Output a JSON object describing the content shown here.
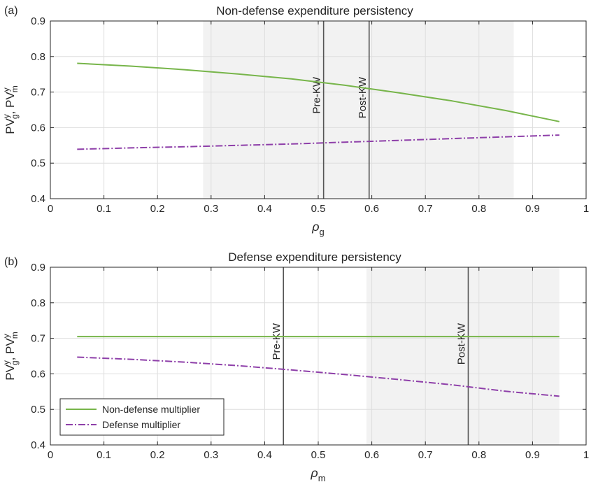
{
  "figure_labels": {
    "a": "(a)",
    "b": "(b)"
  },
  "chart_data": [
    {
      "type": "line",
      "panel": "(a)",
      "title": "Non-defense expenditure persistency",
      "xlabel": "ρ",
      "xlabel_sub": "g",
      "ylabel": "PV^y_g, PV^y_m",
      "ylabel_parts": {
        "base1": "PV",
        "sup1": "y",
        "sub1": "g",
        "sep": ", ",
        "base2": "PV",
        "sup2": "y",
        "sub2": "m"
      },
      "xlim": [
        0,
        1
      ],
      "ylim": [
        0.4,
        0.9
      ],
      "xticks": [
        0,
        0.1,
        0.2,
        0.3,
        0.4,
        0.5,
        0.6,
        0.7,
        0.8,
        0.9,
        1
      ],
      "xtick_labels": [
        "0",
        "0.1",
        "0.2",
        "0.3",
        "0.4",
        "0.5",
        "0.6",
        "0.7",
        "0.8",
        "0.9",
        "1"
      ],
      "yticks": [
        0.4,
        0.5,
        0.6,
        0.7,
        0.8,
        0.9
      ],
      "ytick_labels": [
        "0.4",
        "0.5",
        "0.6",
        "0.7",
        "0.8",
        "0.9"
      ],
      "grid": true,
      "shaded_region": [
        0.285,
        0.865
      ],
      "vlines": [
        {
          "x": 0.51,
          "label": "Pre-KW"
        },
        {
          "x": 0.595,
          "label": "Post-KW"
        }
      ],
      "series": [
        {
          "style": "solid",
          "color": "#77b54a",
          "x": [
            0.05,
            0.15,
            0.25,
            0.35,
            0.45,
            0.55,
            0.65,
            0.75,
            0.85,
            0.95
          ],
          "y": [
            0.781,
            0.773,
            0.763,
            0.751,
            0.737,
            0.719,
            0.698,
            0.675,
            0.648,
            0.617
          ]
        },
        {
          "style": "dashdot",
          "color": "#8e3fa9",
          "x": [
            0.05,
            0.15,
            0.25,
            0.35,
            0.45,
            0.55,
            0.65,
            0.75,
            0.85,
            0.95
          ],
          "y": [
            0.539,
            0.543,
            0.546,
            0.55,
            0.554,
            0.559,
            0.564,
            0.569,
            0.574,
            0.579
          ]
        }
      ]
    },
    {
      "type": "line",
      "panel": "(b)",
      "title": "Defense expenditure persistency",
      "xlabel": "ρ",
      "xlabel_sub": "m",
      "ylabel": "PV^y_g, PV^y_m",
      "ylabel_parts": {
        "base1": "PV",
        "sup1": "y",
        "sub1": "g",
        "sep": ", ",
        "base2": "PV",
        "sup2": "y",
        "sub2": "m"
      },
      "xlim": [
        0,
        1
      ],
      "ylim": [
        0.4,
        0.9
      ],
      "xticks": [
        0,
        0.1,
        0.2,
        0.3,
        0.4,
        0.5,
        0.6,
        0.7,
        0.8,
        0.9,
        1
      ],
      "xtick_labels": [
        "0",
        "0.1",
        "0.2",
        "0.3",
        "0.4",
        "0.5",
        "0.6",
        "0.7",
        "0.8",
        "0.9",
        "1"
      ],
      "yticks": [
        0.4,
        0.5,
        0.6,
        0.7,
        0.8,
        0.9
      ],
      "ytick_labels": [
        "0.4",
        "0.5",
        "0.6",
        "0.7",
        "0.8",
        "0.9"
      ],
      "grid": true,
      "shaded_region": [
        0.59,
        0.95
      ],
      "vlines": [
        {
          "x": 0.435,
          "label": "Pre-KW"
        },
        {
          "x": 0.78,
          "label": "Post-KW"
        }
      ],
      "legend": {
        "placement": "bottom-left",
        "entries": [
          "Non-defense multiplier",
          "Defense multiplier"
        ]
      },
      "series": [
        {
          "name": "Non-defense multiplier",
          "style": "solid",
          "color": "#77b54a",
          "x": [
            0.05,
            0.95
          ],
          "y": [
            0.705,
            0.705
          ]
        },
        {
          "name": "Defense multiplier",
          "style": "dashdot",
          "color": "#8e3fa9",
          "x": [
            0.05,
            0.15,
            0.25,
            0.35,
            0.45,
            0.55,
            0.65,
            0.75,
            0.85,
            0.95
          ],
          "y": [
            0.647,
            0.641,
            0.633,
            0.623,
            0.611,
            0.598,
            0.584,
            0.569,
            0.551,
            0.537
          ]
        }
      ]
    }
  ]
}
